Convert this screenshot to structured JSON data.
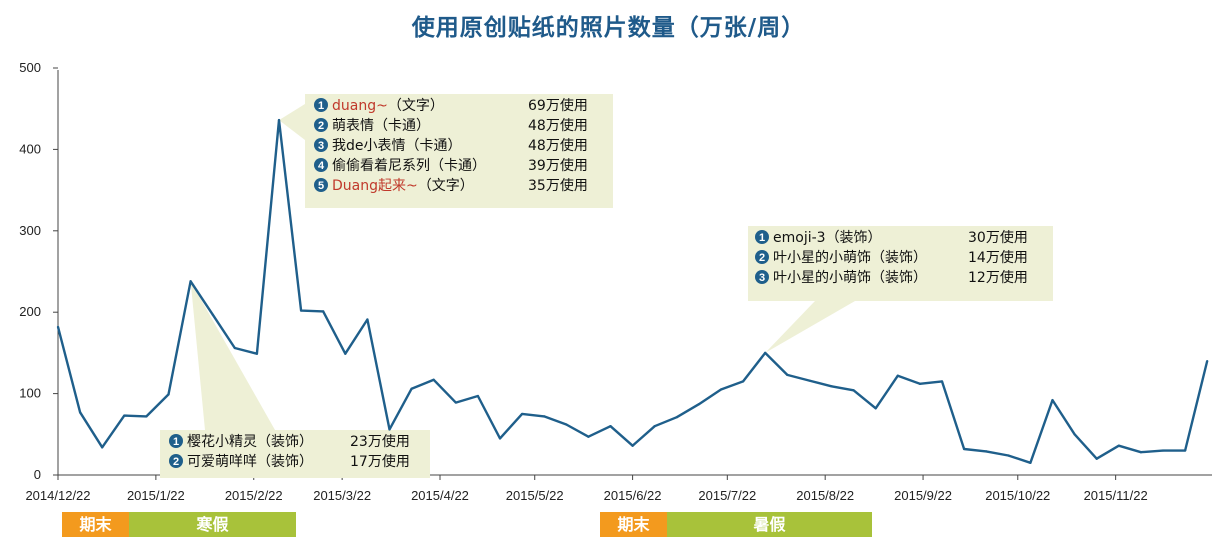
{
  "chart_data": {
    "type": "line",
    "title": "使用原创贴纸的照片数量（万张/周）",
    "ylim": [
      0,
      500
    ],
    "yticks": [
      0,
      100,
      200,
      300,
      400,
      500
    ],
    "xtick_labels": [
      "2014/12/22",
      "2015/1/22",
      "2015/2/22",
      "2015/3/22",
      "2015/4/22",
      "2015/5/22",
      "2015/6/22",
      "2015/7/22",
      "2015/8/22",
      "2015/9/22",
      "2015/10/22",
      "2015/11/22"
    ],
    "x_start": "2014/12/22",
    "x_step_days": 7,
    "values": [
      182,
      77,
      34,
      73,
      72,
      99,
      238,
      197,
      156,
      149,
      436,
      202,
      201,
      149,
      191,
      56,
      106,
      117,
      89,
      97,
      45,
      75,
      72,
      62,
      47,
      60,
      36,
      60,
      71,
      87,
      105,
      115,
      150,
      123,
      116,
      109,
      104,
      82,
      122,
      112,
      115,
      32,
      29,
      24,
      15,
      92,
      50,
      20,
      36,
      28,
      30,
      30,
      140
    ],
    "line_color": "#1f5f8b",
    "annotations": [
      {
        "items": [
          {
            "num": "1",
            "name": "duang~",
            "highlight": true,
            "type": "（文字）",
            "usage": "69万使用"
          },
          {
            "num": "2",
            "name": "萌表情",
            "highlight": false,
            "type": "（卡通）",
            "usage": "48万使用"
          },
          {
            "num": "3",
            "name": "我de小表情",
            "highlight": false,
            "type": "（卡通）",
            "usage": "48万使用"
          },
          {
            "num": "4",
            "name": "偷偷看着尼系列",
            "highlight": false,
            "type": "（卡通）",
            "usage": "39万使用"
          },
          {
            "num": "5",
            "name": "Duang起来~",
            "highlight": true,
            "type": "（文字）",
            "usage": "35万使用"
          }
        ]
      },
      {
        "items": [
          {
            "num": "1",
            "name": "emoji-3",
            "highlight": false,
            "type": "（装饰）",
            "usage": "30万使用"
          },
          {
            "num": "2",
            "name": "叶小星的小萌饰",
            "highlight": false,
            "type": "（装饰）",
            "usage": "14万使用"
          },
          {
            "num": "3",
            "name": "叶小星的小萌饰",
            "highlight": false,
            "type": "（装饰）",
            "usage": "12万使用"
          }
        ]
      },
      {
        "items": [
          {
            "num": "1",
            "name": "樱花小精灵",
            "highlight": false,
            "type": "（装饰）",
            "usage": "23万使用"
          },
          {
            "num": "2",
            "name": "可爱萌咩咩",
            "highlight": false,
            "type": "（装饰）",
            "usage": "17万使用"
          }
        ]
      }
    ],
    "period_bands": [
      {
        "label": "期末",
        "color": "#f39a1e"
      },
      {
        "label": "寒假",
        "color": "#a8c23a"
      },
      {
        "label": "期末",
        "color": "#f39a1e"
      },
      {
        "label": "暑假",
        "color": "#a8c23a"
      }
    ],
    "colors": {
      "callout_bg": "#eef0d6",
      "highlight_text": "#c0392b",
      "badge": "#1f5f8b"
    }
  }
}
